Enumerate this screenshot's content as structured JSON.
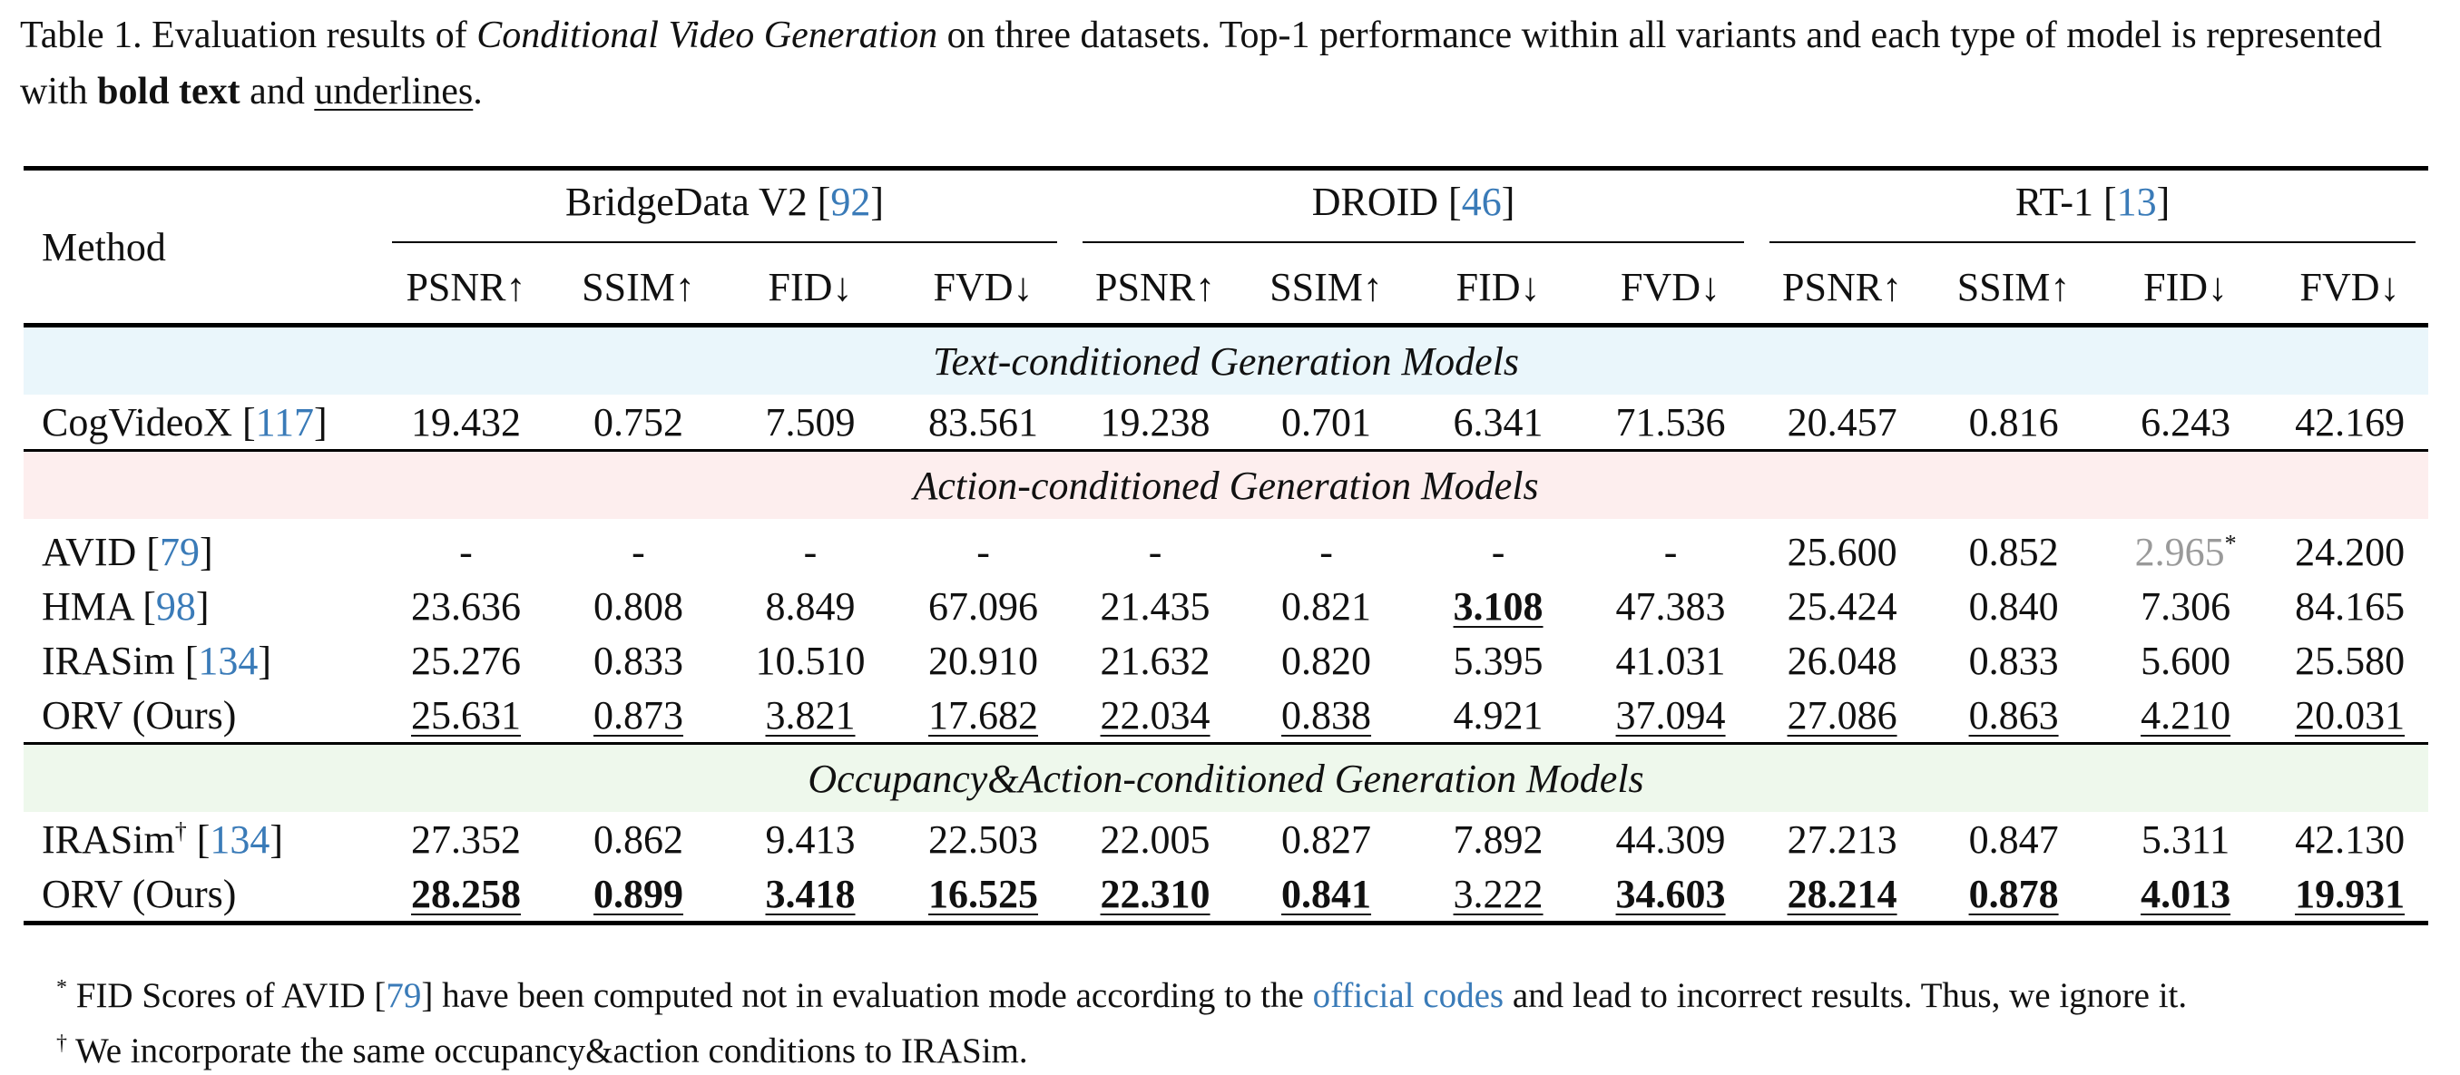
{
  "caption": {
    "prefix": "Table 1. Evaluation results of ",
    "italic": "Conditional Video Generation",
    "middle": " on three datasets. Top-1 performance within all variants and each type of model is represented with ",
    "bold": "bold text",
    "and": " and ",
    "underline": "underlines",
    "suffix": "."
  },
  "header": {
    "method": "Method",
    "groups": [
      {
        "name": "BridgeData V2 [",
        "ref": "92",
        "close": "]"
      },
      {
        "name": "DROID [",
        "ref": "46",
        "close": "]"
      },
      {
        "name": "RT-1 [",
        "ref": "13",
        "close": "]"
      }
    ],
    "metrics": [
      "PSNR↑",
      "SSIM↑",
      "FID↓",
      "FVD↓",
      "PSNR↑",
      "SSIM↑",
      "FID↓",
      "FVD↓",
      "PSNR↑",
      "SSIM↑",
      "FID↓",
      "FVD↓"
    ]
  },
  "sections": {
    "text": "Text-conditioned Generation Models",
    "action": "Action-conditioned Generation Models",
    "occupancy": "Occupancy&Action-conditioned Generation Models"
  },
  "rows": {
    "cogvideox": {
      "name": "CogVideoX [",
      "ref": "117",
      "close": "]",
      "values": [
        "19.432",
        "0.752",
        "7.509",
        "83.561",
        "19.238",
        "0.701",
        "6.341",
        "71.536",
        "20.457",
        "0.816",
        "6.243",
        "42.169"
      ]
    },
    "avid": {
      "name": "AVID [",
      "ref": "79",
      "close": "]",
      "values": [
        "-",
        "-",
        "-",
        "-",
        "-",
        "-",
        "-",
        "-",
        "25.600",
        "0.852",
        "2.965",
        "24.200"
      ],
      "fid_mark": "*"
    },
    "hma": {
      "name": "HMA [",
      "ref": "98",
      "close": "]",
      "values": [
        "23.636",
        "0.808",
        "8.849",
        "67.096",
        "21.435",
        "0.821",
        "3.108",
        "47.383",
        "25.424",
        "0.840",
        "7.306",
        "84.165"
      ]
    },
    "irasim": {
      "name": "IRASim [",
      "ref": "134",
      "close": "]",
      "values": [
        "25.276",
        "0.833",
        "10.510",
        "20.910",
        "21.632",
        "0.820",
        "5.395",
        "41.031",
        "26.048",
        "0.833",
        "5.600",
        "25.580"
      ]
    },
    "orv1": {
      "name": "ORV (Ours)",
      "values": [
        "25.631",
        "0.873",
        "3.821",
        "17.682",
        "22.034",
        "0.838",
        "4.921",
        "37.094",
        "27.086",
        "0.863",
        "4.210",
        "20.031"
      ]
    },
    "irasim2": {
      "name": "IRASim",
      "dagger": "†",
      "ref_open": " [",
      "ref": "134",
      "close": "]",
      "values": [
        "27.352",
        "0.862",
        "9.413",
        "22.503",
        "22.005",
        "0.827",
        "7.892",
        "44.309",
        "27.213",
        "0.847",
        "5.311",
        "42.130"
      ]
    },
    "orv2": {
      "name": "ORV (Ours)",
      "values": [
        "28.258",
        "0.899",
        "3.418",
        "16.525",
        "22.310",
        "0.841",
        "3.222",
        "34.603",
        "28.214",
        "0.878",
        "4.013",
        "19.931"
      ]
    }
  },
  "footnotes": {
    "f1_mark": "*",
    "f1_prefix": " FID Scores of AVID [",
    "f1_ref": "79",
    "f1_mid": "] have been computed not in evaluation mode according to the ",
    "f1_link": "official codes",
    "f1_suffix": " and lead to incorrect results. Thus, we ignore it.",
    "f2_mark": "†",
    "f2_text": " We incorporate the same occupancy&action conditions to IRASim."
  }
}
